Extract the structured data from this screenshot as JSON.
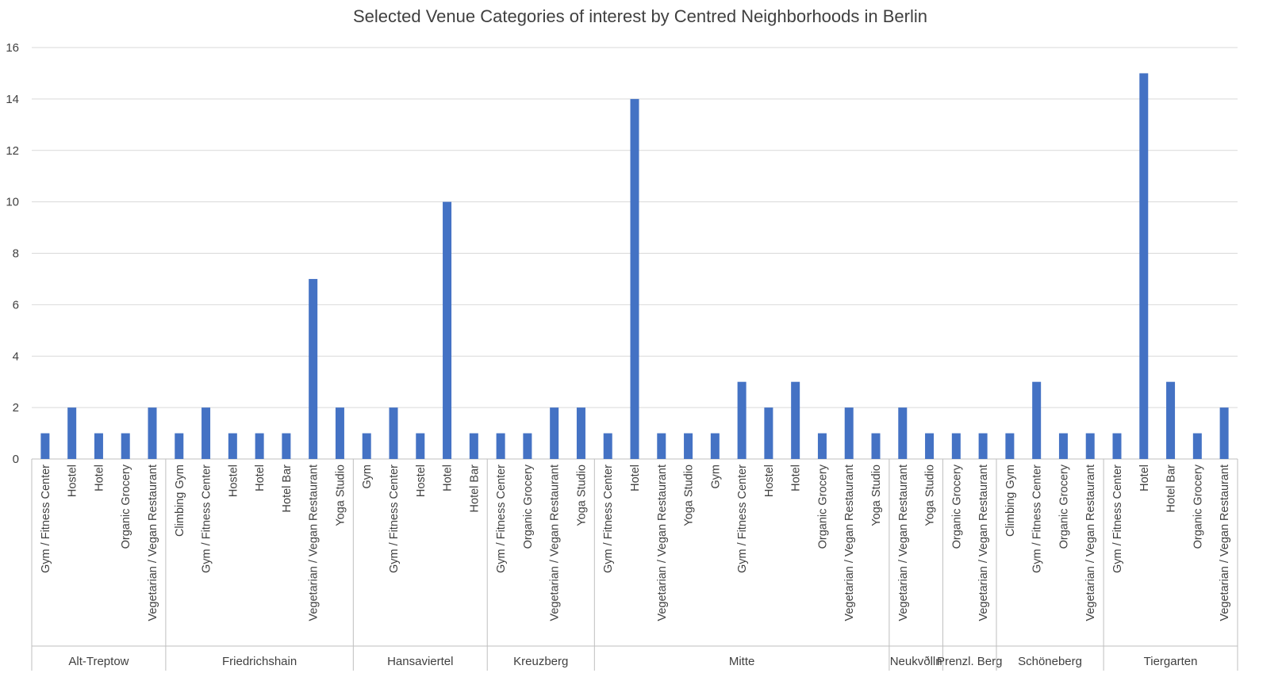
{
  "chart_data": {
    "type": "bar",
    "title": "Selected Venue Categories of interest by Centred Neighborhoods in Berlin",
    "xlabel": "",
    "ylabel": "",
    "ylim": [
      0,
      16
    ],
    "yticks": [
      0,
      2,
      4,
      6,
      8,
      10,
      12,
      14,
      16
    ],
    "grid": true,
    "legend": "none",
    "colors": {
      "bar": "#4472c4",
      "grid": "#d9d9d9",
      "text": "#404040"
    },
    "groups": [
      {
        "name": "Alt-Treptow",
        "categories": [
          "Gym / Fitness Center",
          "Hostel",
          "Hotel",
          "Organic Grocery",
          "Vegetarian / Vegan Restaurant"
        ],
        "values": [
          1,
          2,
          1,
          1,
          2
        ]
      },
      {
        "name": "Friedrichshain",
        "categories": [
          "Climbing Gym",
          "Gym / Fitness Center",
          "Hostel",
          "Hotel",
          "Hotel Bar",
          "Vegetarian / Vegan Restaurant",
          "Yoga Studio"
        ],
        "values": [
          1,
          2,
          1,
          1,
          1,
          7,
          2
        ]
      },
      {
        "name": "Hansaviertel",
        "categories": [
          "Gym",
          "Gym / Fitness Center",
          "Hostel",
          "Hotel",
          "Hotel Bar"
        ],
        "values": [
          1,
          2,
          1,
          10,
          1
        ]
      },
      {
        "name": "Kreuzberg",
        "categories": [
          "Gym / Fitness Center",
          "Organic Grocery",
          "Vegetarian / Vegan Restaurant",
          "Yoga Studio"
        ],
        "values": [
          1,
          1,
          2,
          2
        ]
      },
      {
        "name": "Mitte",
        "categories": [
          "Gym / Fitness Center",
          "Hotel",
          "Vegetarian / Vegan Restaurant",
          "Yoga Studio",
          "Gym",
          "Gym / Fitness Center",
          "Hostel",
          "Hotel",
          "Organic Grocery",
          "Vegetarian / Vegan Restaurant",
          "Yoga Studio"
        ],
        "values": [
          1,
          14,
          1,
          1,
          1,
          3,
          2,
          3,
          1,
          2,
          1
        ]
      },
      {
        "name": "Neukvðlln",
        "categories": [
          "Vegetarian / Vegan Restaurant",
          "Yoga Studio"
        ],
        "values": [
          2,
          1
        ]
      },
      {
        "name": "Prenzl. Berg",
        "categories": [
          "Organic Grocery",
          "Vegetarian / Vegan Restaurant"
        ],
        "values": [
          1,
          1
        ]
      },
      {
        "name": "Schöneberg",
        "categories": [
          "Climbing Gym",
          "Gym / Fitness Center",
          "Organic Grocery",
          "Vegetarian / Vegan Restaurant"
        ],
        "values": [
          1,
          3,
          1,
          1
        ]
      },
      {
        "name": "Tiergarten",
        "categories": [
          "Gym / Fitness Center",
          "Hotel",
          "Hotel Bar",
          "Organic Grocery",
          "Vegetarian / Vegan Restaurant"
        ],
        "values": [
          1,
          15,
          3,
          1,
          2
        ]
      }
    ]
  }
}
